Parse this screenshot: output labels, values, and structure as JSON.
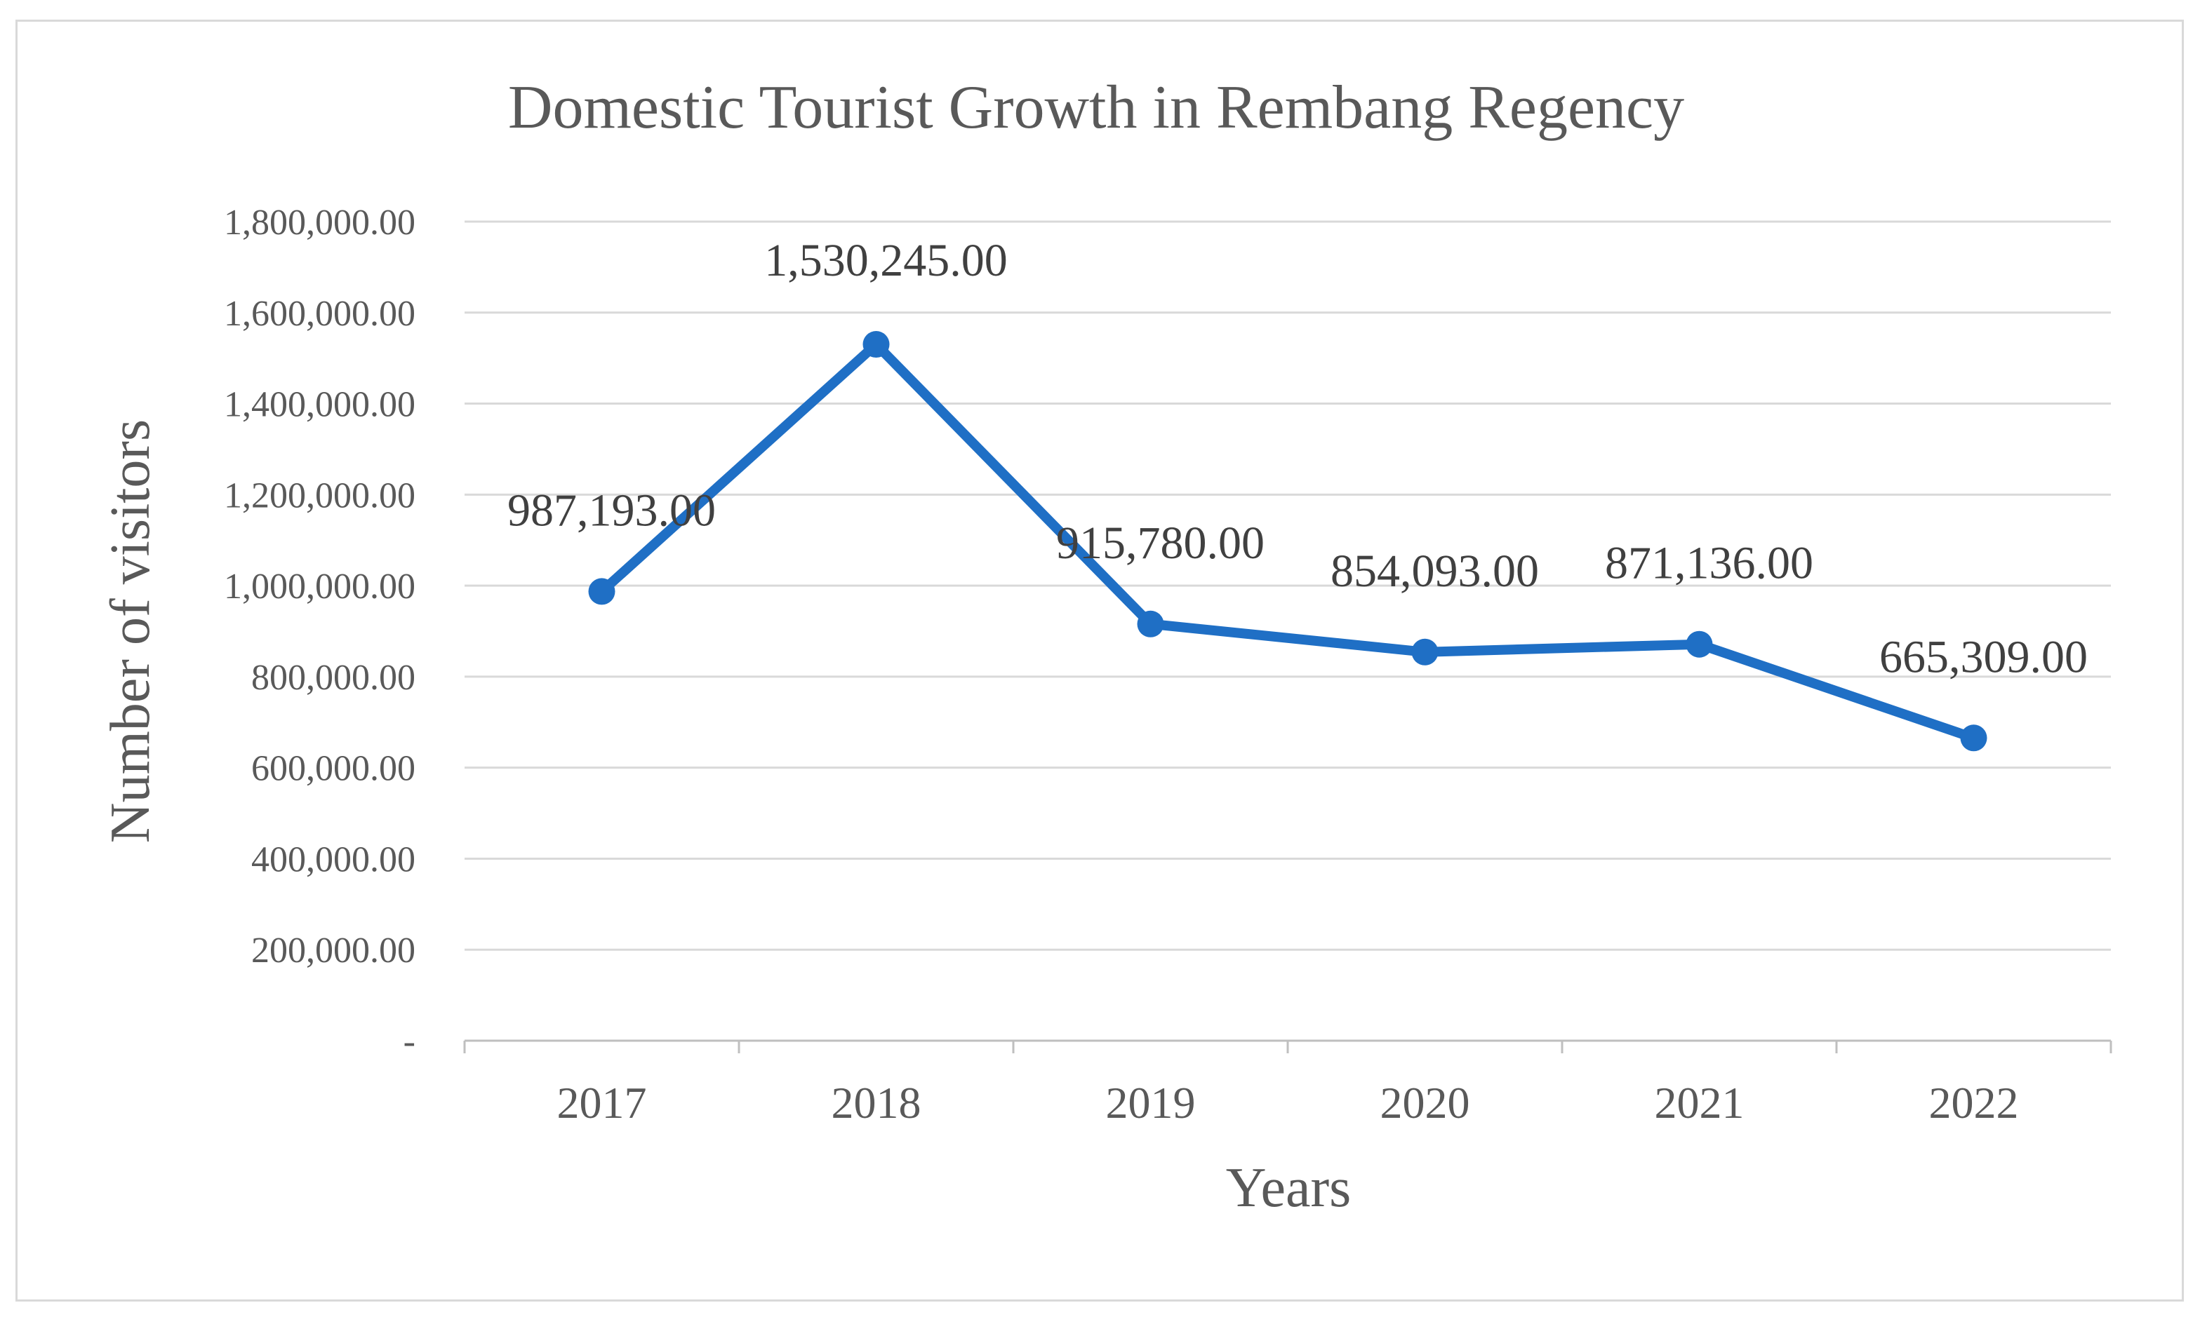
{
  "chart_data": {
    "type": "line",
    "title": "Domestic Tourist Growth in Rembang Regency",
    "xlabel": "Years",
    "ylabel": "Number of visitors",
    "categories": [
      "2017",
      "2018",
      "2019",
      "2020",
      "2021",
      "2022"
    ],
    "series": [
      {
        "values": [
          987193,
          1530245,
          915780,
          854093,
          871136,
          665309
        ],
        "data_labels": [
          "987,193.00",
          "1,530,245.00",
          "915,780.00",
          "854,093.00",
          "871,136.00",
          "665,309.00"
        ],
        "color": "#1f6fc5"
      }
    ],
    "ylim": [
      0,
      1800000
    ],
    "yticks": [
      0,
      200000,
      400000,
      600000,
      800000,
      1000000,
      1200000,
      1400000,
      1600000,
      1800000
    ],
    "ytick_labels": [
      "-",
      "200,000.00",
      "400,000.00",
      "600,000.00",
      "800,000.00",
      "1,000,000.00",
      "1,200,000.00",
      "1,400,000.00",
      "1,600,000.00",
      "1,800,000.00"
    ],
    "grid": true,
    "legend": "none",
    "colors": {
      "gridline": "#d9d9d9",
      "axis": "#bfbfbf",
      "title": "#595959",
      "tick": "#595959",
      "label": "#404040"
    }
  }
}
